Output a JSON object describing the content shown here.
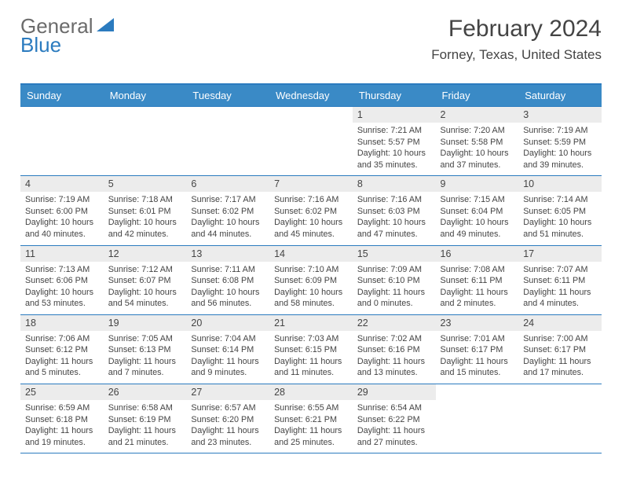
{
  "logo": {
    "part1": "General",
    "part2": "Blue",
    "accent_color": "#2b7bbf",
    "text_color": "#6b6b6b"
  },
  "header": {
    "title": "February 2024",
    "location": "Forney, Texas, United States"
  },
  "calendar": {
    "header_bg": "#3a8ac6",
    "header_fg": "#ffffff",
    "border_color": "#2b7bbf",
    "shade_bg": "#ececec",
    "daynames": [
      "Sunday",
      "Monday",
      "Tuesday",
      "Wednesday",
      "Thursday",
      "Friday",
      "Saturday"
    ],
    "weeks": [
      [
        null,
        null,
        null,
        null,
        {
          "n": "1",
          "sr": "7:21 AM",
          "ss": "5:57 PM",
          "dl": "10 hours and 35 minutes."
        },
        {
          "n": "2",
          "sr": "7:20 AM",
          "ss": "5:58 PM",
          "dl": "10 hours and 37 minutes."
        },
        {
          "n": "3",
          "sr": "7:19 AM",
          "ss": "5:59 PM",
          "dl": "10 hours and 39 minutes."
        }
      ],
      [
        {
          "n": "4",
          "sr": "7:19 AM",
          "ss": "6:00 PM",
          "dl": "10 hours and 40 minutes."
        },
        {
          "n": "5",
          "sr": "7:18 AM",
          "ss": "6:01 PM",
          "dl": "10 hours and 42 minutes."
        },
        {
          "n": "6",
          "sr": "7:17 AM",
          "ss": "6:02 PM",
          "dl": "10 hours and 44 minutes."
        },
        {
          "n": "7",
          "sr": "7:16 AM",
          "ss": "6:02 PM",
          "dl": "10 hours and 45 minutes."
        },
        {
          "n": "8",
          "sr": "7:16 AM",
          "ss": "6:03 PM",
          "dl": "10 hours and 47 minutes."
        },
        {
          "n": "9",
          "sr": "7:15 AM",
          "ss": "6:04 PM",
          "dl": "10 hours and 49 minutes."
        },
        {
          "n": "10",
          "sr": "7:14 AM",
          "ss": "6:05 PM",
          "dl": "10 hours and 51 minutes."
        }
      ],
      [
        {
          "n": "11",
          "sr": "7:13 AM",
          "ss": "6:06 PM",
          "dl": "10 hours and 53 minutes."
        },
        {
          "n": "12",
          "sr": "7:12 AM",
          "ss": "6:07 PM",
          "dl": "10 hours and 54 minutes."
        },
        {
          "n": "13",
          "sr": "7:11 AM",
          "ss": "6:08 PM",
          "dl": "10 hours and 56 minutes."
        },
        {
          "n": "14",
          "sr": "7:10 AM",
          "ss": "6:09 PM",
          "dl": "10 hours and 58 minutes."
        },
        {
          "n": "15",
          "sr": "7:09 AM",
          "ss": "6:10 PM",
          "dl": "11 hours and 0 minutes."
        },
        {
          "n": "16",
          "sr": "7:08 AM",
          "ss": "6:11 PM",
          "dl": "11 hours and 2 minutes."
        },
        {
          "n": "17",
          "sr": "7:07 AM",
          "ss": "6:11 PM",
          "dl": "11 hours and 4 minutes."
        }
      ],
      [
        {
          "n": "18",
          "sr": "7:06 AM",
          "ss": "6:12 PM",
          "dl": "11 hours and 5 minutes."
        },
        {
          "n": "19",
          "sr": "7:05 AM",
          "ss": "6:13 PM",
          "dl": "11 hours and 7 minutes."
        },
        {
          "n": "20",
          "sr": "7:04 AM",
          "ss": "6:14 PM",
          "dl": "11 hours and 9 minutes."
        },
        {
          "n": "21",
          "sr": "7:03 AM",
          "ss": "6:15 PM",
          "dl": "11 hours and 11 minutes."
        },
        {
          "n": "22",
          "sr": "7:02 AM",
          "ss": "6:16 PM",
          "dl": "11 hours and 13 minutes."
        },
        {
          "n": "23",
          "sr": "7:01 AM",
          "ss": "6:17 PM",
          "dl": "11 hours and 15 minutes."
        },
        {
          "n": "24",
          "sr": "7:00 AM",
          "ss": "6:17 PM",
          "dl": "11 hours and 17 minutes."
        }
      ],
      [
        {
          "n": "25",
          "sr": "6:59 AM",
          "ss": "6:18 PM",
          "dl": "11 hours and 19 minutes."
        },
        {
          "n": "26",
          "sr": "6:58 AM",
          "ss": "6:19 PM",
          "dl": "11 hours and 21 minutes."
        },
        {
          "n": "27",
          "sr": "6:57 AM",
          "ss": "6:20 PM",
          "dl": "11 hours and 23 minutes."
        },
        {
          "n": "28",
          "sr": "6:55 AM",
          "ss": "6:21 PM",
          "dl": "11 hours and 25 minutes."
        },
        {
          "n": "29",
          "sr": "6:54 AM",
          "ss": "6:22 PM",
          "dl": "11 hours and 27 minutes."
        },
        null,
        null
      ]
    ]
  },
  "labels": {
    "sunrise": "Sunrise:",
    "sunset": "Sunset:",
    "daylight": "Daylight:"
  }
}
